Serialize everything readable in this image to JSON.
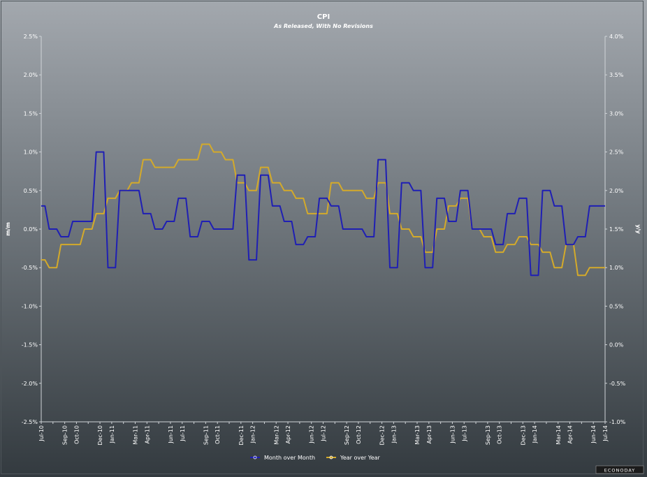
{
  "chart_data": {
    "type": "line",
    "title": "CPI",
    "subtitle": "As Released, With No Revisions",
    "ylabel_left": "m/m",
    "ylabel_right": "y/y",
    "ylim_left": [
      -2.5,
      2.5
    ],
    "ylim_right": [
      -1.0,
      4.0
    ],
    "left_ticks": [
      "2.5%",
      "2.0%",
      "1.5%",
      "1.0%",
      "0.5%",
      "0.0%",
      "-0.5%",
      "-1.0%",
      "-1.5%",
      "-2.0%",
      "-2.5%"
    ],
    "right_ticks": [
      "4.0%",
      "3.5%",
      "3.0%",
      "2.5%",
      "2.0%",
      "1.5%",
      "1.0%",
      "0.5%",
      "0.0%",
      "-0.5%",
      "-1.0%"
    ],
    "x_tick_labels": [
      {
        "index": 0,
        "label": "Jul-10"
      },
      {
        "index": 2,
        "label": "Sep-10"
      },
      {
        "index": 3,
        "label": "Oct-10"
      },
      {
        "index": 5,
        "label": "Dec-10"
      },
      {
        "index": 6,
        "label": "Jan-11"
      },
      {
        "index": 8,
        "label": "Mar-11"
      },
      {
        "index": 9,
        "label": "Apr-11"
      },
      {
        "index": 11,
        "label": "Jun-11"
      },
      {
        "index": 12,
        "label": "Jul-11"
      },
      {
        "index": 14,
        "label": "Sep-11"
      },
      {
        "index": 15,
        "label": "Oct-11"
      },
      {
        "index": 17,
        "label": "Dec-11"
      },
      {
        "index": 18,
        "label": "Jan-12"
      },
      {
        "index": 20,
        "label": "Mar-12"
      },
      {
        "index": 21,
        "label": "Apr-12"
      },
      {
        "index": 23,
        "label": "Jun-12"
      },
      {
        "index": 24,
        "label": "Jul-12"
      },
      {
        "index": 26,
        "label": "Sep-12"
      },
      {
        "index": 27,
        "label": "Oct-12"
      },
      {
        "index": 29,
        "label": "Dec-12"
      },
      {
        "index": 30,
        "label": "Jan-13"
      },
      {
        "index": 32,
        "label": "Mar-13"
      },
      {
        "index": 33,
        "label": "Apr-13"
      },
      {
        "index": 35,
        "label": "Jun-13"
      },
      {
        "index": 36,
        "label": "Jul-13"
      },
      {
        "index": 38,
        "label": "Sep-13"
      },
      {
        "index": 39,
        "label": "Oct-13"
      },
      {
        "index": 41,
        "label": "Dec-13"
      },
      {
        "index": 42,
        "label": "Jan-14"
      },
      {
        "index": 44,
        "label": "Mar-14"
      },
      {
        "index": 45,
        "label": "Apr-14"
      },
      {
        "index": 47,
        "label": "Jun-14"
      },
      {
        "index": 48,
        "label": "Jul-14"
      }
    ],
    "month_count": 49,
    "series": [
      {
        "name": "Month over Month",
        "axis": "left",
        "color": "#1f1fb4",
        "values": [
          0.3,
          0.0,
          -0.1,
          0.1,
          0.1,
          1.0,
          -0.5,
          0.5,
          0.5,
          0.2,
          0.0,
          0.1,
          0.4,
          -0.1,
          0.1,
          0.0,
          0.0,
          0.7,
          -0.4,
          0.7,
          0.3,
          0.1,
          -0.2,
          -0.1,
          0.4,
          0.3,
          0.0,
          0.0,
          -0.1,
          0.9,
          -0.5,
          0.6,
          0.5,
          -0.5,
          0.4,
          0.1,
          0.5,
          0.0,
          0.0,
          -0.2,
          0.2,
          0.4,
          -0.6,
          0.5,
          0.3,
          -0.2,
          -0.1,
          0.3,
          0.3
        ]
      },
      {
        "name": "Year over Year",
        "axis": "right",
        "color": "#d4aa2a",
        "values": [
          1.1,
          1.0,
          1.3,
          1.3,
          1.5,
          1.7,
          1.9,
          2.0,
          2.1,
          2.4,
          2.3,
          2.3,
          2.4,
          2.4,
          2.6,
          2.5,
          2.4,
          2.1,
          2.0,
          2.3,
          2.1,
          2.0,
          1.9,
          1.7,
          1.7,
          2.1,
          2.0,
          2.0,
          1.9,
          2.1,
          1.7,
          1.5,
          1.4,
          1.2,
          1.5,
          1.8,
          1.9,
          1.5,
          1.4,
          1.2,
          1.3,
          1.4,
          1.3,
          1.2,
          1.0,
          1.3,
          0.9,
          1.0,
          1.0
        ]
      }
    ],
    "legend_position": "bottom-center",
    "grid": false
  },
  "branding": {
    "watermark": "ECONODAY"
  }
}
